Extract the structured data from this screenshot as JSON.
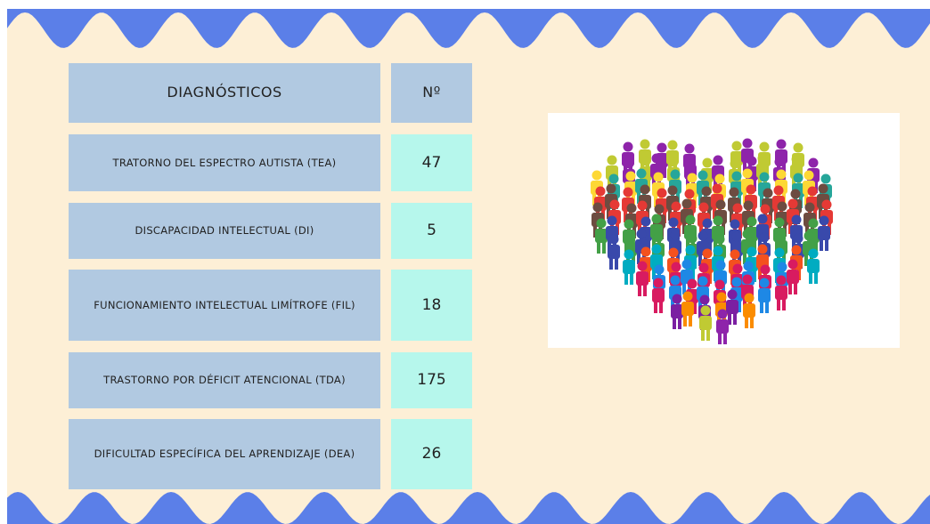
{
  "table": {
    "header": [
      "DIAGNÓSTICOS",
      "Nº"
    ],
    "rows": [
      [
        "TRATORNO DEL ESPECTRO AUTISTA (TEA)",
        "47"
      ],
      [
        "DISCAPACIDAD INTELECTUAL (DI)",
        "5"
      ],
      [
        "FUNCIONAMIENTO INTELECTUAL LIMÍTROFE (FIL)",
        "18"
      ],
      [
        "TRASTORNO POR DÉFICIT ATENCIONAL  (TDA)",
        "175"
      ],
      [
        "DIFICULTAD ESPECÍFICA DEL APRENDIZAJE (DEA)",
        "26"
      ]
    ]
  }
}
